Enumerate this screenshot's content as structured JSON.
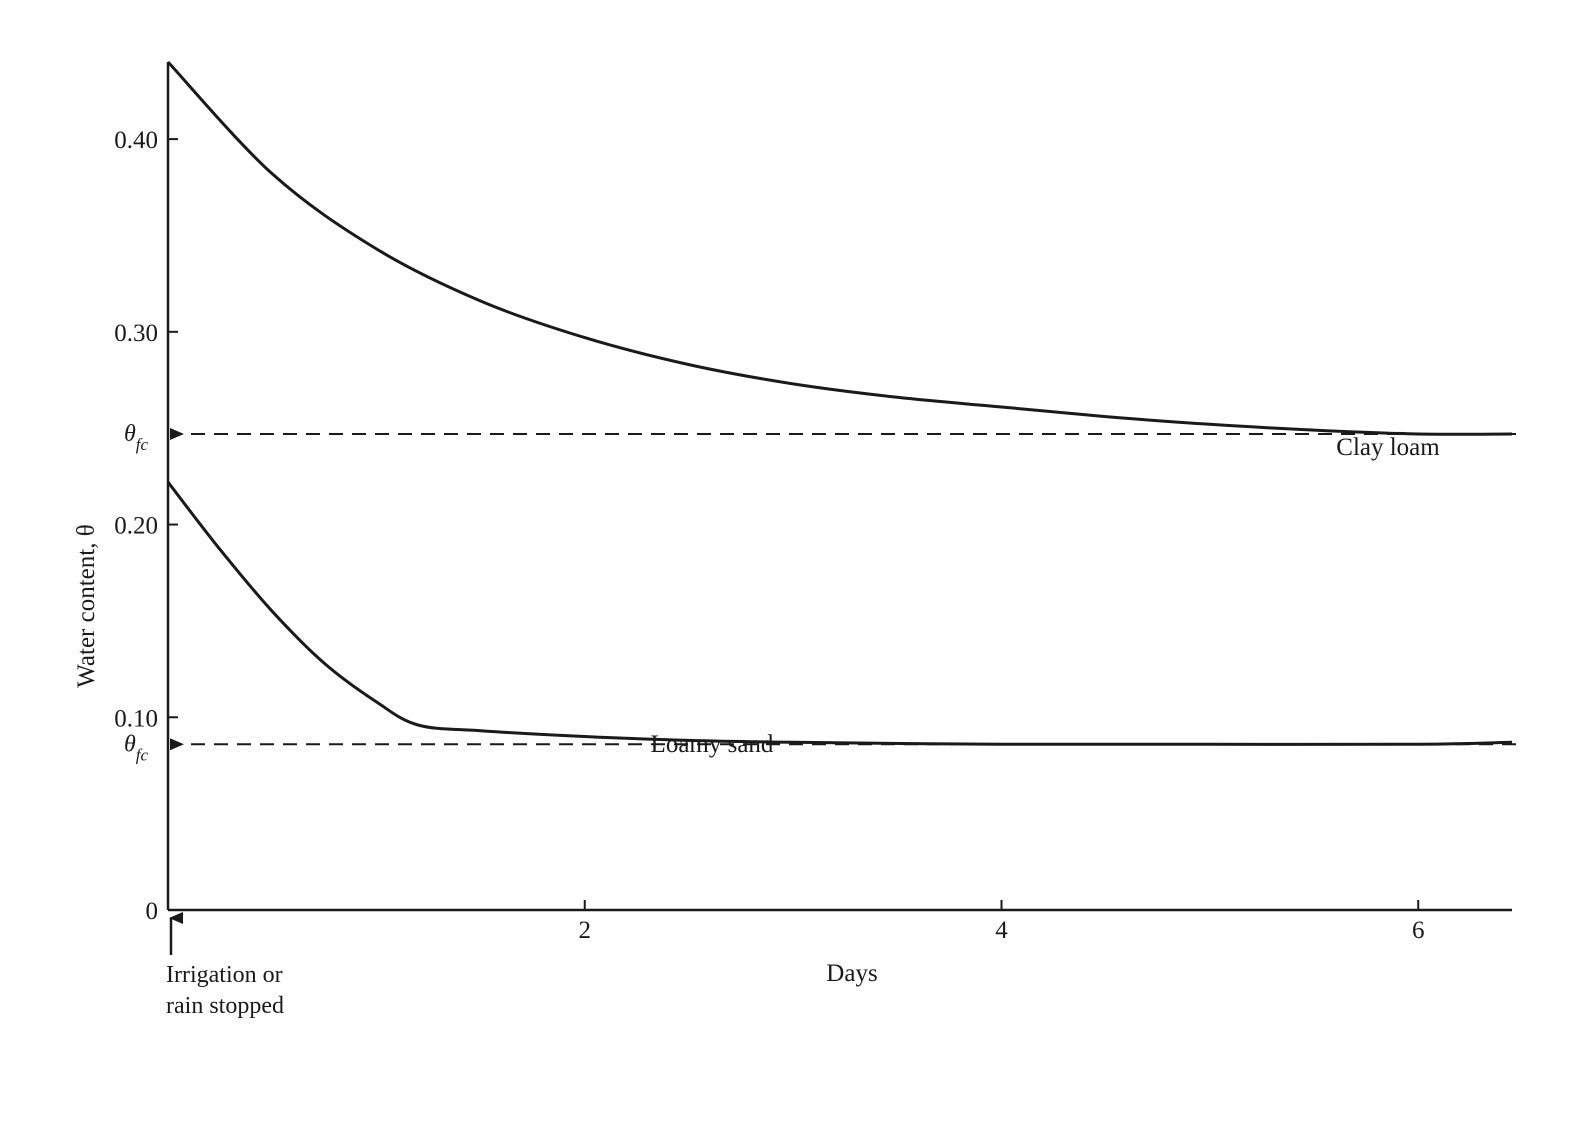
{
  "chart_data": {
    "type": "line",
    "xlabel": "Days",
    "ylabel": "Water content, θ",
    "xlim": [
      0,
      6.45
    ],
    "ylim": [
      0,
      0.44
    ],
    "x_ticks": [
      {
        "value": 2,
        "label": "2"
      },
      {
        "value": 4,
        "label": "4"
      },
      {
        "value": 6,
        "label": "6"
      }
    ],
    "y_ticks": [
      {
        "value": 0,
        "label": "0"
      },
      {
        "value": 0.1,
        "label": "0.10"
      },
      {
        "value": 0.2,
        "label": "0.20"
      },
      {
        "value": 0.3,
        "label": "0.30"
      },
      {
        "value": 0.4,
        "label": "0.40"
      }
    ],
    "series": [
      {
        "name": "Clay loam",
        "x": [
          0,
          0.5,
          1,
          1.5,
          2,
          2.5,
          3,
          3.5,
          4,
          4.5,
          5,
          5.5,
          6,
          6.45
        ],
        "y": [
          0.44,
          0.382,
          0.343,
          0.316,
          0.297,
          0.283,
          0.273,
          0.266,
          0.261,
          0.256,
          0.252,
          0.249,
          0.247,
          0.247
        ],
        "field_capacity": 0.247
      },
      {
        "name": "Loamy sand",
        "x": [
          0,
          0.25,
          0.5,
          0.75,
          1,
          1.2,
          1.5,
          2,
          2.5,
          3,
          4,
          5,
          6,
          6.45
        ],
        "y": [
          0.222,
          0.187,
          0.155,
          0.128,
          0.108,
          0.096,
          0.093,
          0.09,
          0.088,
          0.087,
          0.086,
          0.086,
          0.086,
          0.087
        ],
        "field_capacity": 0.086
      }
    ],
    "reference_lines": [
      {
        "label": "θ",
        "subscript": "fc",
        "y": 0.247
      },
      {
        "label": "θ",
        "subscript": "fc",
        "y": 0.086
      }
    ],
    "annotations": [
      {
        "lines": [
          "Irrigation or",
          "rain stopped"
        ],
        "x": 0
      }
    ],
    "grid": false
  }
}
